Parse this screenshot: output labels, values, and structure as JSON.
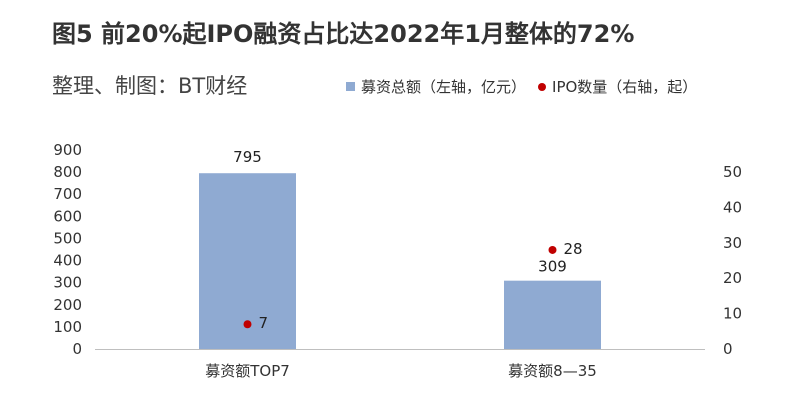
{
  "title": "图5 前20%起IPO融资占比达2022年1月整体的72%",
  "subtitle": "整理、制图：BT财经",
  "chart_data": {
    "type": "bar",
    "categories": [
      "募资额TOP7",
      "募资额8—35"
    ],
    "series": [
      {
        "name": "募资总额（左轴，亿元）",
        "values": [
          795,
          309
        ],
        "axis": "left",
        "color": "#8faad2",
        "kind": "bar"
      },
      {
        "name": "IPO数量（右轴，起）",
        "values": [
          7,
          28
        ],
        "axis": "right",
        "color": "#c00000",
        "kind": "scatter"
      }
    ],
    "y_left": {
      "ticks": [
        0,
        100,
        200,
        300,
        400,
        500,
        600,
        700,
        800,
        900
      ],
      "ylim": [
        0,
        900
      ]
    },
    "y_right": {
      "ticks": [
        0,
        10,
        20,
        30,
        40,
        50
      ],
      "ylim": [
        0,
        56.25
      ]
    },
    "legend_position": "top-right",
    "grid": false
  }
}
